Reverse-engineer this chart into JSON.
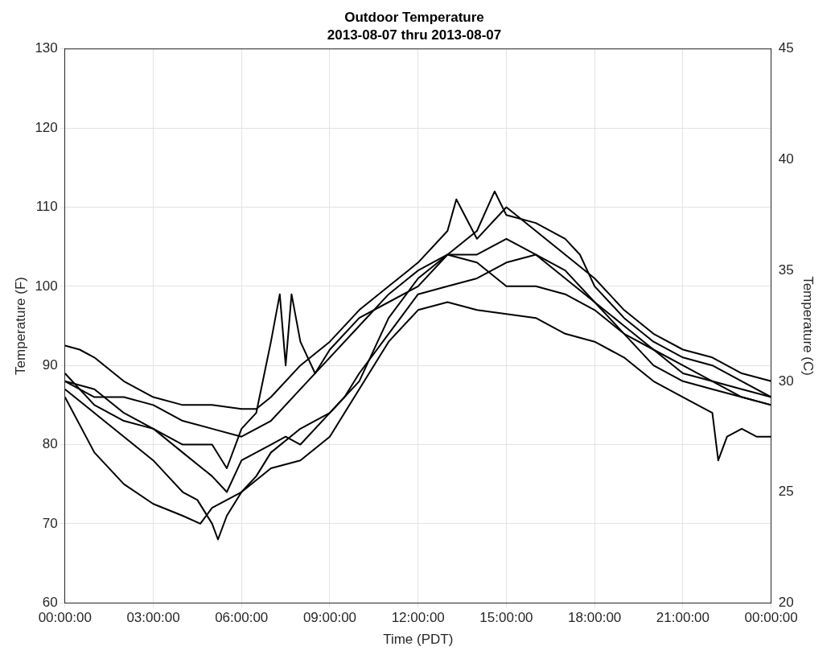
{
  "chart_data": {
    "type": "line",
    "title": "Outdoor Temperature",
    "subtitle": "2013-08-07 thru 2013-08-07",
    "xlabel": "Time (PDT)",
    "ylabel": "Temperature (F)",
    "y2label": "Temperature (C)",
    "xlim": [
      "2013-08-07T00:00",
      "2013-08-08T00:00"
    ],
    "xticks": [
      {
        "value": "2013-08-07T00:00",
        "label": "00:00:00"
      },
      {
        "value": "2013-08-07T03:00",
        "label": "03:00:00"
      },
      {
        "value": "2013-08-07T06:00",
        "label": "06:00:00"
      },
      {
        "value": "2013-08-07T09:00",
        "label": "09:00:00"
      },
      {
        "value": "2013-08-07T12:00",
        "label": "12:00:00"
      },
      {
        "value": "2013-08-07T15:00",
        "label": "15:00:00"
      },
      {
        "value": "2013-08-07T18:00",
        "label": "18:00:00"
      },
      {
        "value": "2013-08-07T21:00",
        "label": "21:00:00"
      },
      {
        "value": "2013-08-08T00:00",
        "label": "00:00:00"
      }
    ],
    "ylim": [
      60,
      130
    ],
    "yticks": [
      60,
      70,
      80,
      90,
      100,
      110,
      120,
      130
    ],
    "y2lim": [
      20,
      45
    ],
    "y2ticks": [
      20,
      25,
      30,
      35,
      40,
      45
    ],
    "grid": true,
    "legend": false,
    "marker": "none",
    "line_style": "solid",
    "series": [
      {
        "color": "#000000",
        "x": [
          "2013-08-07T00:00",
          "2013-08-07T01:00",
          "2013-08-07T02:00",
          "2013-08-07T03:00",
          "2013-08-07T04:00",
          "2013-08-07T04:36",
          "2013-08-07T05:00",
          "2013-08-07T05:30",
          "2013-08-07T06:00",
          "2013-08-07T07:00",
          "2013-08-07T08:00",
          "2013-08-07T09:00",
          "2013-08-07T10:00",
          "2013-08-07T11:00",
          "2013-08-07T12:00",
          "2013-08-07T13:00",
          "2013-08-07T14:00",
          "2013-08-07T15:00",
          "2013-08-07T16:00",
          "2013-08-07T17:00",
          "2013-08-07T18:00",
          "2013-08-07T19:00",
          "2013-08-07T20:00",
          "2013-08-07T21:00",
          "2013-08-07T22:00",
          "2013-08-07T22:12",
          "2013-08-07T22:30",
          "2013-08-07T23:00",
          "2013-08-07T23:30",
          "2013-08-08T00:00"
        ],
        "values": [
          86,
          79,
          75,
          72.5,
          71,
          70,
          72,
          73,
          74,
          77,
          78,
          81,
          87,
          93,
          97,
          98,
          97,
          96.5,
          96,
          94,
          93,
          91,
          88,
          86,
          84,
          78,
          81,
          82,
          81,
          81
        ]
      },
      {
        "color": "#000000",
        "x": [
          "2013-08-07T00:00",
          "2013-08-07T01:00",
          "2013-08-07T02:00",
          "2013-08-07T03:00",
          "2013-08-07T03:30",
          "2013-08-07T04:00",
          "2013-08-07T04:30",
          "2013-08-07T05:00",
          "2013-08-07T05:12",
          "2013-08-07T05:30",
          "2013-08-07T06:00",
          "2013-08-07T06:30",
          "2013-08-07T07:00",
          "2013-08-07T08:00",
          "2013-08-07T09:00",
          "2013-08-07T10:00",
          "2013-08-07T11:00",
          "2013-08-07T12:00",
          "2013-08-07T13:00",
          "2013-08-07T14:00",
          "2013-08-07T15:00",
          "2013-08-07T16:00",
          "2013-08-07T17:00",
          "2013-08-07T18:00",
          "2013-08-07T19:00",
          "2013-08-07T20:00",
          "2013-08-07T21:00",
          "2013-08-07T22:00",
          "2013-08-07T23:00",
          "2013-08-08T00:00"
        ],
        "values": [
          87,
          84,
          81,
          78,
          76,
          74,
          73,
          70,
          68,
          71,
          74,
          76,
          79,
          82,
          84,
          88,
          96,
          101,
          104,
          103,
          100,
          100,
          99,
          97,
          94,
          90,
          88,
          87,
          86,
          85
        ]
      },
      {
        "color": "#000000",
        "x": [
          "2013-08-07T00:00",
          "2013-08-07T01:00",
          "2013-08-07T02:00",
          "2013-08-07T03:00",
          "2013-08-07T04:00",
          "2013-08-07T05:00",
          "2013-08-07T05:30",
          "2013-08-07T06:00",
          "2013-08-07T06:30",
          "2013-08-07T07:00",
          "2013-08-07T07:18",
          "2013-08-07T07:30",
          "2013-08-07T07:42",
          "2013-08-07T08:00",
          "2013-08-07T08:30",
          "2013-08-07T09:00",
          "2013-08-07T10:00",
          "2013-08-07T11:00",
          "2013-08-07T12:00",
          "2013-08-07T13:00",
          "2013-08-07T14:00",
          "2013-08-07T15:00",
          "2013-08-07T16:00",
          "2013-08-07T17:00",
          "2013-08-07T18:00",
          "2013-08-07T19:00",
          "2013-08-07T20:00",
          "2013-08-07T21:00",
          "2013-08-07T22:00",
          "2013-08-07T23:00",
          "2013-08-08T00:00"
        ],
        "values": [
          88,
          87,
          84,
          82,
          80,
          80,
          77,
          82,
          84,
          93,
          99,
          90,
          99,
          93,
          89,
          92,
          96,
          98,
          100,
          104,
          104,
          106,
          104,
          102,
          98,
          94,
          92,
          90,
          88,
          86,
          85
        ]
      },
      {
        "color": "#000000",
        "x": [
          "2013-08-07T00:00",
          "2013-08-07T00:30",
          "2013-08-07T01:00",
          "2013-08-07T02:00",
          "2013-08-07T03:00",
          "2013-08-07T04:00",
          "2013-08-07T05:00",
          "2013-08-07T06:00",
          "2013-08-07T06:30",
          "2013-08-07T07:00",
          "2013-08-07T08:00",
          "2013-08-07T09:00",
          "2013-08-07T10:00",
          "2013-08-07T11:00",
          "2013-08-07T12:00",
          "2013-08-07T13:00",
          "2013-08-07T13:18",
          "2013-08-07T14:00",
          "2013-08-07T15:00",
          "2013-08-07T16:00",
          "2013-08-07T17:00",
          "2013-08-07T18:00",
          "2013-08-07T19:00",
          "2013-08-07T20:00",
          "2013-08-07T21:00",
          "2013-08-07T22:00",
          "2013-08-07T23:00",
          "2013-08-08T00:00"
        ],
        "values": [
          92.5,
          92,
          91,
          88,
          86,
          85,
          85,
          84.5,
          84.5,
          86,
          90,
          93,
          97,
          100,
          103,
          107,
          111,
          106,
          110,
          107,
          104,
          101,
          97,
          94,
          92,
          91,
          89,
          88
        ]
      },
      {
        "color": "#000000",
        "x": [
          "2013-08-07T00:00",
          "2013-08-07T01:00",
          "2013-08-07T02:00",
          "2013-08-07T03:00",
          "2013-08-07T04:00",
          "2013-08-07T05:00",
          "2013-08-07T06:00",
          "2013-08-07T06:30",
          "2013-08-07T07:00",
          "2013-08-07T08:00",
          "2013-08-07T09:00",
          "2013-08-07T10:00",
          "2013-08-07T11:00",
          "2013-08-07T12:00",
          "2013-08-07T13:00",
          "2013-08-07T14:00",
          "2013-08-07T14:36",
          "2013-08-07T15:00",
          "2013-08-07T16:00",
          "2013-08-07T17:00",
          "2013-08-07T17:30",
          "2013-08-07T18:00",
          "2013-08-07T19:00",
          "2013-08-07T20:00",
          "2013-08-07T21:00",
          "2013-08-07T22:00",
          "2013-08-07T23:00",
          "2013-08-08T00:00"
        ],
        "values": [
          88,
          86,
          86,
          85,
          83,
          82,
          81,
          82,
          83,
          87,
          91,
          95,
          99,
          102,
          104,
          107,
          112,
          109,
          108,
          106,
          104,
          100,
          96,
          93,
          91,
          90,
          88,
          86
        ]
      },
      {
        "color": "#000000",
        "x": [
          "2013-08-07T00:00",
          "2013-08-07T01:00",
          "2013-08-07T02:00",
          "2013-08-07T03:00",
          "2013-08-07T04:00",
          "2013-08-07T05:00",
          "2013-08-07T05:30",
          "2013-08-07T06:00",
          "2013-08-07T07:00",
          "2013-08-07T07:30",
          "2013-08-07T08:00",
          "2013-08-07T09:00",
          "2013-08-07T09:30",
          "2013-08-07T10:00",
          "2013-08-07T11:00",
          "2013-08-07T12:00",
          "2013-08-07T13:00",
          "2013-08-07T14:00",
          "2013-08-07T15:00",
          "2013-08-07T16:00",
          "2013-08-07T17:00",
          "2013-08-07T18:00",
          "2013-08-07T19:00",
          "2013-08-07T20:00",
          "2013-08-07T21:00",
          "2013-08-07T22:00",
          "2013-08-07T23:00",
          "2013-08-08T00:00"
        ],
        "values": [
          89,
          85,
          83,
          82,
          79,
          76,
          74,
          78,
          80,
          81,
          80,
          84,
          86,
          89,
          94,
          99,
          100,
          101,
          103,
          104,
          101,
          98,
          95,
          92,
          89,
          88,
          87,
          86
        ]
      }
    ]
  }
}
